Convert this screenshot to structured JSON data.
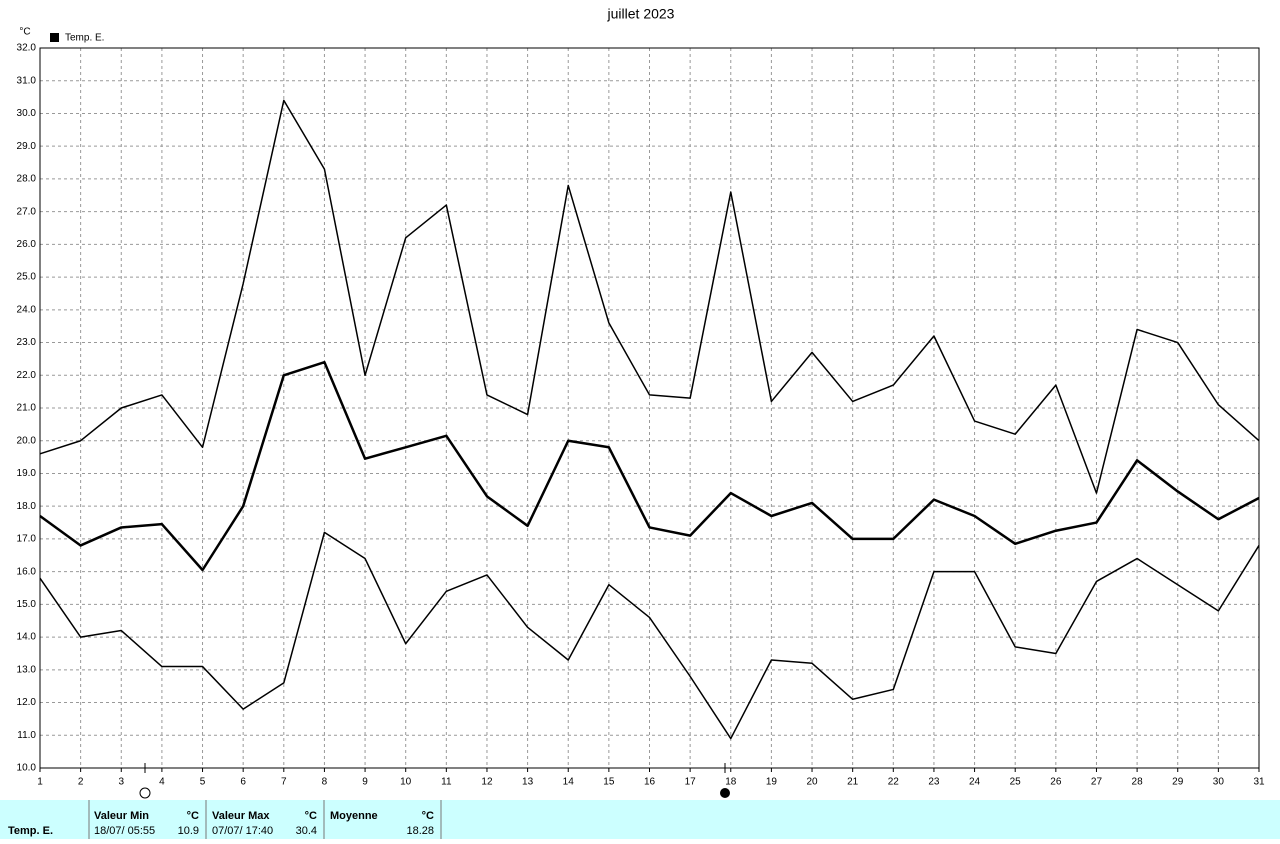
{
  "chart_data": {
    "type": "line",
    "title": "juillet 2023",
    "y_unit": "°C",
    "legend": "Temp. E.",
    "legend_color": "#000000",
    "x": [
      1,
      2,
      3,
      4,
      5,
      6,
      7,
      8,
      9,
      10,
      11,
      12,
      13,
      14,
      15,
      16,
      17,
      18,
      19,
      20,
      21,
      22,
      23,
      24,
      25,
      26,
      27,
      28,
      29,
      30,
      31
    ],
    "xlim": [
      1,
      31
    ],
    "xticks": [
      1,
      2,
      3,
      4,
      5,
      6,
      7,
      8,
      9,
      10,
      11,
      12,
      13,
      14,
      15,
      16,
      17,
      18,
      19,
      20,
      21,
      22,
      23,
      24,
      25,
      26,
      27,
      28,
      29,
      30,
      31
    ],
    "ylim": [
      10,
      32
    ],
    "yticks": [
      {
        "value": 10,
        "label": "10.0"
      },
      {
        "value": 11,
        "label": "11.0"
      },
      {
        "value": 12,
        "label": "12.0"
      },
      {
        "value": 13,
        "label": "13.0"
      },
      {
        "value": 14,
        "label": "14.0"
      },
      {
        "value": 15,
        "label": "15.0"
      },
      {
        "value": 16,
        "label": "16.0"
      },
      {
        "value": 17,
        "label": "17.0"
      },
      {
        "value": 18,
        "label": "18.0"
      },
      {
        "value": 19,
        "label": "19.0"
      },
      {
        "value": 20,
        "label": "20.0"
      },
      {
        "value": 21,
        "label": "21.0"
      },
      {
        "value": 22,
        "label": "22.0"
      },
      {
        "value": 23,
        "label": "23.0"
      },
      {
        "value": 24,
        "label": "24.0"
      },
      {
        "value": 25,
        "label": "25.0"
      },
      {
        "value": 26,
        "label": "26.0"
      },
      {
        "value": 27,
        "label": "27.0"
      },
      {
        "value": 28,
        "label": "28.0"
      },
      {
        "value": 29,
        "label": "29.0"
      },
      {
        "value": 30,
        "label": "30.0"
      },
      {
        "value": 31,
        "label": "31.0"
      },
      {
        "value": 32,
        "label": "32.0"
      }
    ],
    "grid": true,
    "series": [
      {
        "color": "#000000",
        "width": 1.5,
        "values": [
          19.6,
          20.0,
          21.0,
          21.4,
          19.8,
          24.8,
          30.4,
          28.3,
          22.0,
          26.2,
          27.2,
          21.4,
          20.8,
          27.8,
          23.6,
          21.4,
          21.3,
          27.6,
          21.2,
          22.7,
          21.2,
          21.7,
          23.2,
          20.6,
          20.2,
          21.7,
          18.4,
          23.4,
          23.0,
          21.1,
          20.0
        ]
      },
      {
        "color": "#000000",
        "width": 2.5,
        "values": [
          17.7,
          16.8,
          17.35,
          17.45,
          16.05,
          18.0,
          22.0,
          22.4,
          19.45,
          19.8,
          20.15,
          18.3,
          17.4,
          20.0,
          19.8,
          17.35,
          17.1,
          18.4,
          17.7,
          18.1,
          17.0,
          17.0,
          18.2,
          17.7,
          16.85,
          17.25,
          17.5,
          19.4,
          18.45,
          17.6,
          18.25
        ]
      },
      {
        "color": "#000000",
        "width": 1.5,
        "values": [
          15.8,
          14.0,
          14.2,
          13.1,
          13.1,
          11.8,
          12.6,
          17.2,
          16.4,
          13.8,
          15.4,
          15.9,
          14.3,
          13.3,
          15.6,
          14.6,
          12.8,
          10.9,
          13.3,
          13.2,
          12.1,
          12.4,
          16.0,
          16.0,
          13.7,
          13.5,
          15.7,
          16.4,
          15.6,
          14.8,
          16.8
        ]
      }
    ]
  },
  "summary_table": {
    "row_label": "Temp. E.",
    "min": {
      "header": "Valeur Min",
      "unit": "°C",
      "date": "18/07/ 05:55",
      "value": 10.9
    },
    "max": {
      "header": "Valeur Max",
      "unit": "°C",
      "date": "07/07/ 17:40",
      "value": 30.4
    },
    "mean": {
      "header": "Moyenne",
      "unit": "°C",
      "value": 18.28
    }
  }
}
